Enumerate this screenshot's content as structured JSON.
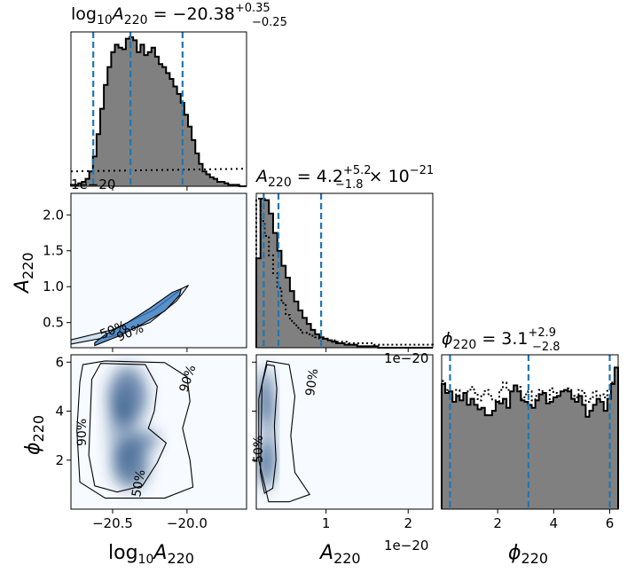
{
  "colors": {
    "hist_fill": "#808080",
    "hist_edge": "#000000",
    "quantile_line": "#1f77b4",
    "density_dark": "#08306b",
    "density_light": "#f7fbff"
  },
  "titles": {
    "logA": {
      "lhs": "log",
      "lhs_sub": "10",
      "var": "A",
      "var_sub": "220",
      "eq": " = ",
      "val": "−20.38",
      "plus": "+0.35",
      "minus": "−0.25"
    },
    "A": {
      "var": "A",
      "var_sub": "220",
      "eq": " = ",
      "val": "4.2",
      "plus": "+5.2",
      "minus": "−1.8",
      "times": " × 10",
      "exp": "−21"
    },
    "phi": {
      "var": "ϕ",
      "var_sub": "220",
      "eq": " = ",
      "val": "3.1",
      "plus": "+2.9",
      "minus": "−2.8"
    }
  },
  "axis_labels": {
    "logA": {
      "lhs": "log",
      "lhs_sub": "10",
      "var": "A",
      "var_sub": "220"
    },
    "A": {
      "var": "A",
      "var_sub": "220"
    },
    "phi": {
      "var": "ϕ",
      "var_sub": "220"
    }
  },
  "offset_texts": {
    "hist1": "1e−20",
    "hist2": "1e−20",
    "xaxis_A": "1e−20"
  },
  "tick_labels": {
    "logA_x": [
      "−20.5",
      "−20.0"
    ],
    "A_x": [
      "1",
      "2"
    ],
    "A_y": [
      "0.5",
      "1.0",
      "1.5",
      "2.0"
    ],
    "phi_x": [
      "2",
      "4",
      "6"
    ],
    "phi_y": [
      "2",
      "4",
      "6"
    ]
  },
  "contour_labels": {
    "label_50": "50%",
    "label_90": "90%"
  },
  "chart_data": {
    "type": "corner",
    "parameters": [
      "log10 A220",
      "A220",
      "ϕ220"
    ],
    "ranges": {
      "logA": [
        -20.78,
        -19.6
      ],
      "A": [
        0.15,
        2.3
      ],
      "phi": [
        0.0,
        6.3
      ]
    },
    "units": {
      "A": "1e-20"
    },
    "quantiles": {
      "logA": [
        -20.63,
        -20.38,
        -20.03
      ],
      "A": [
        0.24,
        0.42,
        0.94
      ],
      "phi": [
        0.3,
        3.1,
        6.0
      ]
    },
    "hist_logA": {
      "range": [
        -20.78,
        -19.6
      ],
      "values": [
        0.01,
        0.01,
        0.02,
        0.03,
        0.05,
        0.1,
        0.2,
        0.35,
        0.52,
        0.68,
        0.8,
        0.9,
        0.95,
        0.93,
        0.92,
        0.99,
        1.0,
        0.98,
        0.9,
        0.95,
        0.88,
        0.9,
        0.93,
        0.87,
        0.82,
        0.8,
        0.76,
        0.72,
        0.67,
        0.62,
        0.56,
        0.48,
        0.4,
        0.31,
        0.22,
        0.15,
        0.1,
        0.08,
        0.06,
        0.05,
        0.03,
        0.03,
        0.02,
        0.01,
        0.01,
        0.01,
        0.0,
        0.0
      ],
      "prior_level": 0.1
    },
    "hist_A": {
      "range": [
        0.15,
        2.3
      ],
      "values": [
        0.6,
        1.0,
        0.99,
        0.9,
        0.77,
        0.65,
        0.55,
        0.47,
        0.38,
        0.31,
        0.25,
        0.2,
        0.16,
        0.12,
        0.09,
        0.07,
        0.06,
        0.05,
        0.04,
        0.03,
        0.03,
        0.02,
        0.02,
        0.02,
        0.01,
        0.01,
        0.01,
        0.01,
        0.01,
        0.0,
        0.0,
        0.0,
        0.0,
        0.0,
        0.0,
        0.0,
        0.0,
        0.0,
        0.0,
        0.0,
        0.0,
        0.0
      ],
      "prior": [
        1.0,
        0.85,
        0.75,
        0.62,
        0.5,
        0.4,
        0.3,
        0.22,
        0.18,
        0.15,
        0.12,
        0.1,
        0.09,
        0.08,
        0.07,
        0.06,
        0.06,
        0.05,
        0.05,
        0.04,
        0.04,
        0.04,
        0.03,
        0.03,
        0.03,
        0.03,
        0.03,
        0.03,
        0.02,
        0.02,
        0.02,
        0.02,
        0.02,
        0.02,
        0.02,
        0.02,
        0.02,
        0.02,
        0.02,
        0.02,
        0.02,
        0.02
      ]
    },
    "hist_phi": {
      "range": [
        0.0,
        6.3
      ],
      "values": [
        0.84,
        0.78,
        0.79,
        0.72,
        0.76,
        0.73,
        0.78,
        0.7,
        0.74,
        0.7,
        0.67,
        0.68,
        0.63,
        0.63,
        0.66,
        0.72,
        0.71,
        0.74,
        0.68,
        0.79,
        0.83,
        0.79,
        0.73,
        0.72,
        0.7,
        0.68,
        0.73,
        0.77,
        0.78,
        0.71,
        0.72,
        0.75,
        0.76,
        0.79,
        0.8,
        0.79,
        0.74,
        0.72,
        0.76,
        0.7,
        0.62,
        0.66,
        0.7,
        0.74,
        0.72,
        0.66,
        0.74,
        0.84,
        0.95
      ],
      "prior": [
        0.86,
        0.8,
        0.76,
        0.74,
        0.8,
        0.76,
        0.73,
        0.79,
        0.82,
        0.78,
        0.73,
        0.77,
        0.8,
        0.76,
        0.73,
        0.71,
        0.8,
        0.85,
        0.8,
        0.76,
        0.78,
        0.82,
        0.74,
        0.77,
        0.79,
        0.73,
        0.76,
        0.8,
        0.77,
        0.73,
        0.81,
        0.78,
        0.75,
        0.73,
        0.78,
        0.81,
        0.76,
        0.75,
        0.8,
        0.78,
        0.72,
        0.74,
        0.79,
        0.76,
        0.77,
        0.75,
        0.8,
        0.85,
        0.86
      ]
    },
    "contour_logA_A": {
      "level_50": [
        [
          -20.62,
          0.18
        ],
        [
          -20.45,
          0.32
        ],
        [
          -20.3,
          0.48
        ],
        [
          -20.15,
          0.66
        ],
        [
          -20.05,
          0.88
        ],
        [
          -20.04,
          0.97
        ],
        [
          -20.1,
          0.92
        ],
        [
          -20.25,
          0.7
        ],
        [
          -20.4,
          0.5
        ],
        [
          -20.55,
          0.33
        ],
        [
          -20.62,
          0.22
        ]
      ],
      "level_90": [
        [
          -20.78,
          0.2
        ],
        [
          -20.5,
          0.31
        ],
        [
          -20.25,
          0.5
        ],
        [
          -20.07,
          0.8
        ],
        [
          -19.99,
          1.02
        ],
        [
          -20.03,
          0.98
        ],
        [
          -20.22,
          0.68
        ],
        [
          -20.5,
          0.4
        ],
        [
          -20.78,
          0.26
        ]
      ]
    },
    "contour_logA_phi": {
      "level_50": [
        [
          -20.64,
          5.3
        ],
        [
          -20.58,
          5.95
        ],
        [
          -20.28,
          5.9
        ],
        [
          -20.2,
          5.0
        ],
        [
          -20.22,
          4.0
        ],
        [
          -20.26,
          3.3
        ],
        [
          -20.14,
          2.7
        ],
        [
          -20.2,
          1.9
        ],
        [
          -20.3,
          0.95
        ],
        [
          -20.47,
          0.7
        ],
        [
          -20.62,
          0.95
        ],
        [
          -20.66,
          2.2
        ],
        [
          -20.65,
          3.8
        ],
        [
          -20.64,
          5.3
        ]
      ],
      "level_90": [
        [
          -20.7,
          5.9
        ],
        [
          -20.55,
          6.05
        ],
        [
          -20.15,
          5.98
        ],
        [
          -20.0,
          5.4
        ],
        [
          -19.98,
          4.4
        ],
        [
          -20.03,
          3.3
        ],
        [
          -19.98,
          2.0
        ],
        [
          -19.96,
          0.9
        ],
        [
          -20.15,
          0.45
        ],
        [
          -20.55,
          0.45
        ],
        [
          -20.72,
          1.1
        ],
        [
          -20.74,
          3.2
        ],
        [
          -20.72,
          5.2
        ],
        [
          -20.7,
          5.9
        ]
      ]
    },
    "contour_A_phi": {
      "level_50": [
        [
          0.22,
          5.1
        ],
        [
          0.28,
          5.9
        ],
        [
          0.37,
          5.85
        ],
        [
          0.4,
          4.9
        ],
        [
          0.37,
          3.4
        ],
        [
          0.39,
          2.0
        ],
        [
          0.35,
          0.85
        ],
        [
          0.25,
          0.65
        ],
        [
          0.2,
          1.5
        ],
        [
          0.21,
          3.3
        ],
        [
          0.22,
          5.1
        ]
      ],
      "level_90": [
        [
          0.28,
          6.05
        ],
        [
          0.55,
          5.9
        ],
        [
          0.62,
          4.6
        ],
        [
          0.57,
          3.0
        ],
        [
          0.62,
          1.5
        ],
        [
          0.8,
          0.6
        ],
        [
          0.55,
          0.3
        ],
        [
          0.3,
          0.3
        ],
        [
          0.18,
          2.0
        ],
        [
          0.18,
          4.5
        ],
        [
          0.28,
          6.05
        ]
      ]
    },
    "density_blobs": {
      "logA_phi": [
        {
          "x": -20.4,
          "y": 4.6,
          "sx": 0.14,
          "sy": 1.3,
          "w": 0.9
        },
        {
          "x": -20.38,
          "y": 1.8,
          "sx": 0.13,
          "sy": 1.0,
          "w": 0.95
        },
        {
          "x": -20.3,
          "y": 2.8,
          "sx": 0.12,
          "sy": 0.5,
          "w": 0.7
        },
        {
          "x": -20.45,
          "y": 3.3,
          "sx": 0.09,
          "sy": 1.6,
          "w": 0.5
        }
      ],
      "A_phi": [
        {
          "x": 0.26,
          "y": 4.6,
          "sx": 0.1,
          "sy": 1.2,
          "w": 0.95
        },
        {
          "x": 0.27,
          "y": 1.8,
          "sx": 0.11,
          "sy": 1.0,
          "w": 1.0
        },
        {
          "x": 0.3,
          "y": 3.2,
          "sx": 0.09,
          "sy": 1.6,
          "w": 0.55
        }
      ]
    }
  }
}
